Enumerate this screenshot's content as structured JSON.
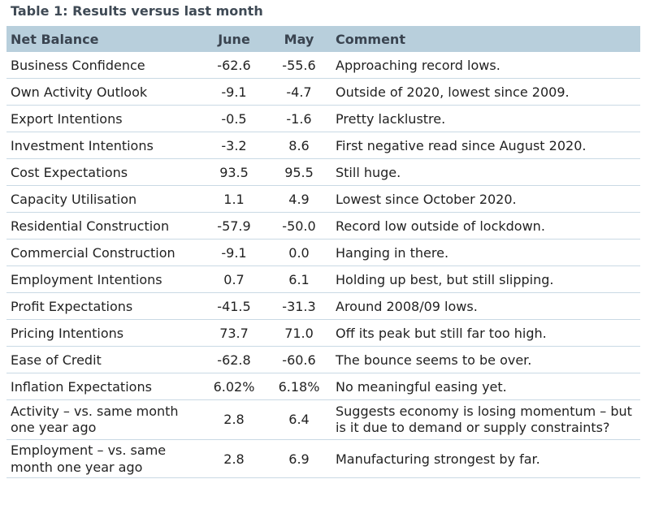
{
  "title": "Table 1: Results versus last month",
  "headers": [
    "Net Balance",
    "June",
    "May",
    "Comment"
  ],
  "rows": [
    {
      "label": "Business Confidence",
      "june": "-62.6",
      "may": "-55.6",
      "comment": "Approaching record lows."
    },
    {
      "label": "Own Activity Outlook",
      "june": "-9.1",
      "may": "-4.7",
      "comment": "Outside of 2020, lowest since 2009."
    },
    {
      "label": "Export Intentions",
      "june": "-0.5",
      "may": "-1.6",
      "comment": "Pretty lacklustre."
    },
    {
      "label": "Investment Intentions",
      "june": "-3.2",
      "may": "8.6",
      "comment": "First negative read since August 2020."
    },
    {
      "label": "Cost Expectations",
      "june": "93.5",
      "may": "95.5",
      "comment": "Still huge."
    },
    {
      "label": "Capacity Utilisation",
      "june": "1.1",
      "may": "4.9",
      "comment": "Lowest since October 2020."
    },
    {
      "label": "Residential Construction",
      "june": "-57.9",
      "may": "-50.0",
      "comment": "Record low outside of lockdown."
    },
    {
      "label": "Commercial Construction",
      "june": "-9.1",
      "may": "0.0",
      "comment": "Hanging in there."
    },
    {
      "label": "Employment Intentions",
      "june": "0.7",
      "may": "6.1",
      "comment": "Holding up best, but still slipping."
    },
    {
      "label": "Profit Expectations",
      "june": "-41.5",
      "may": "-31.3",
      "comment": "Around 2008/09 lows."
    },
    {
      "label": "Pricing Intentions",
      "june": "73.7",
      "may": "71.0",
      "comment": "Off its peak but still far too high."
    },
    {
      "label": "Ease of Credit",
      "june": "-62.8",
      "may": "-60.6",
      "comment": "The bounce seems to be over."
    },
    {
      "label": "Inflation Expectations",
      "june": "6.02%",
      "may": "6.18%",
      "comment": "No meaningful easing yet."
    },
    {
      "label": "Activity – vs. same month one year ago",
      "june": "2.8",
      "may": "6.4",
      "comment": "Suggests economy is losing momentum – but is it due to demand or supply constraints?"
    },
    {
      "label": "Employment – vs. same month one year ago",
      "june": "2.8",
      "may": "6.9",
      "comment": "Manufacturing strongest by far."
    }
  ]
}
